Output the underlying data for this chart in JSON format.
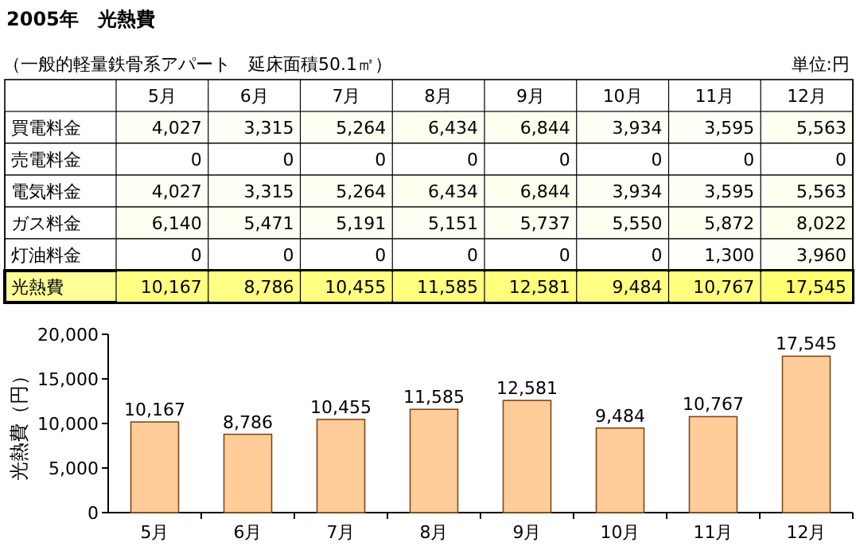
{
  "chart_data": [
    {
      "type": "heatmap",
      "title": "2005年　光熱費",
      "subtitle": "（一般的軽量鉄骨系アパート　延床面積50.1㎡）",
      "annotations": [
        "単位:円"
      ],
      "categories": [
        "5月",
        "6月",
        "7月",
        "8月",
        "9月",
        "10月",
        "11月",
        "12月"
      ],
      "y_categories": [
        "買電料金",
        "売電料金",
        "電気料金",
        "ガス料金",
        "灯油料金",
        "光熱費"
      ],
      "cells": [
        [
          4027,
          3315,
          5264,
          6434,
          6844,
          3934,
          3595,
          5563
        ],
        [
          0,
          0,
          0,
          0,
          0,
          0,
          0,
          0
        ],
        [
          4027,
          3315,
          5264,
          6434,
          6844,
          3934,
          3595,
          5563
        ],
        [
          6140,
          5471,
          5191,
          5151,
          5737,
          5550,
          5872,
          8022
        ],
        [
          0,
          0,
          0,
          0,
          0,
          0,
          1300,
          3960
        ],
        [
          10167,
          8786,
          10455,
          11585,
          12581,
          9484,
          10767,
          17545
        ]
      ],
      "cell_labels": [
        [
          "4,027",
          "3,315",
          "5,264",
          "6,434",
          "6,844",
          "3,934",
          "3,595",
          "5,563"
        ],
        [
          "0",
          "0",
          "0",
          "0",
          "0",
          "0",
          "0",
          "0"
        ],
        [
          "4,027",
          "3,315",
          "5,264",
          "6,434",
          "6,844",
          "3,934",
          "3,595",
          "5,563"
        ],
        [
          "6,140",
          "5,471",
          "5,191",
          "5,151",
          "5,737",
          "5,550",
          "5,872",
          "8,022"
        ],
        [
          "0",
          "0",
          "0",
          "0",
          "0",
          "0",
          "1,300",
          "3,960"
        ],
        [
          "10,167",
          "8,786",
          "10,455",
          "11,585",
          "12,581",
          "9,484",
          "10,767",
          "17,545"
        ]
      ]
    },
    {
      "type": "bar",
      "categories": [
        "5月",
        "6月",
        "7月",
        "8月",
        "9月",
        "10月",
        "11月",
        "12月"
      ],
      "values": [
        10167,
        8786,
        10455,
        11585,
        12581,
        9484,
        10767,
        17545
      ],
      "value_labels": [
        "10,167",
        "8,786",
        "10,455",
        "11,585",
        "12,581",
        "9,484",
        "10,767",
        "17,545"
      ],
      "color": "#ffcc99",
      "ylabel": "光熱費（円）",
      "ylim": [
        0,
        20000
      ],
      "yticks": [
        {
          "value": 0,
          "label": "0"
        },
        {
          "value": 5000,
          "label": "5,000"
        },
        {
          "value": 10000,
          "label": "10,000"
        },
        {
          "value": 15000,
          "label": "15,000"
        },
        {
          "value": 20000,
          "label": "20,000"
        }
      ],
      "grid": false
    }
  ]
}
